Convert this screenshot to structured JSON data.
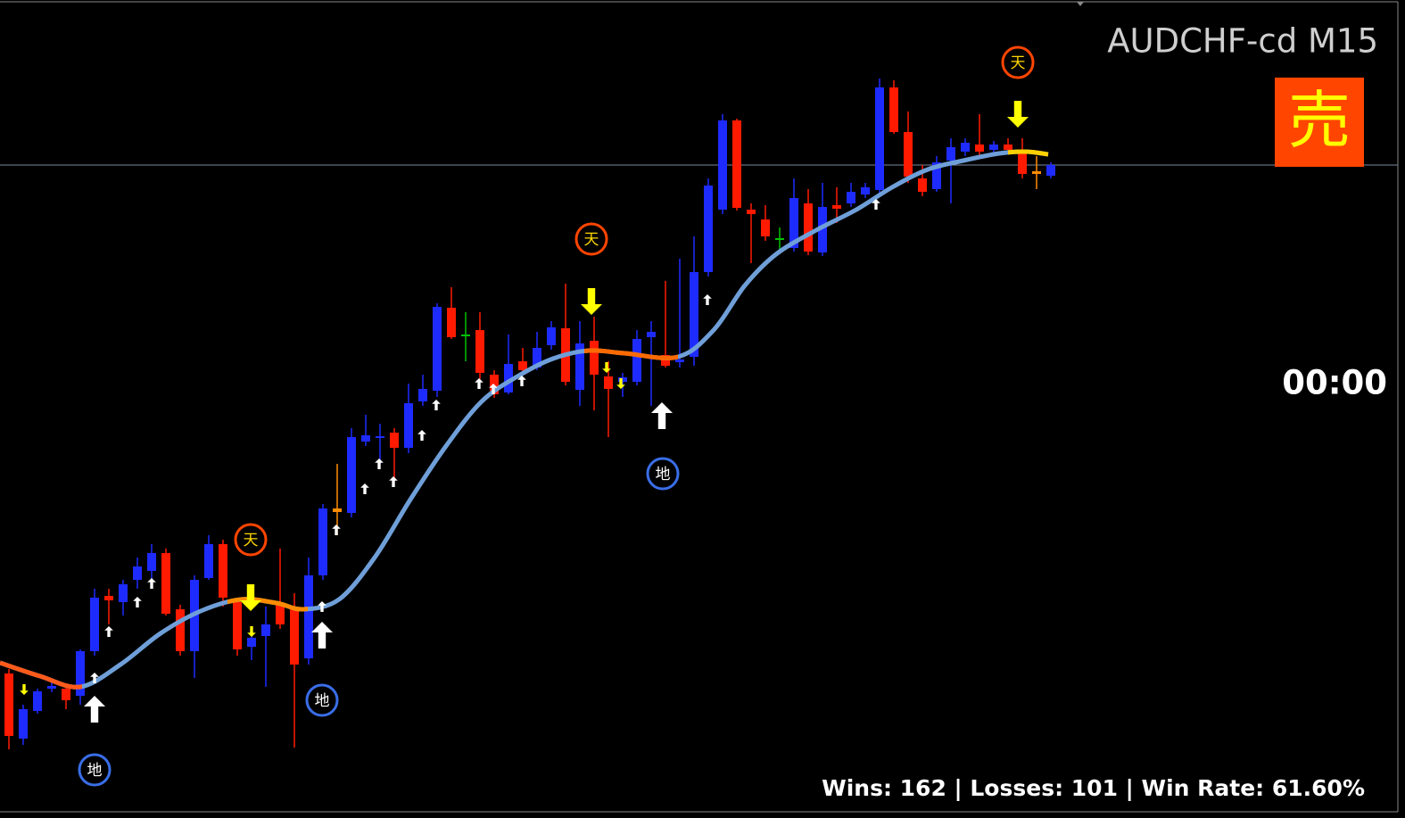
{
  "symbol": "AUDCHF-cd M15",
  "signal": "売",
  "timer": "00:00",
  "stats": "Wins: 162 | Losses: 101 | Win Rate: 61.60%",
  "markers": {
    "top": "天",
    "bottom": "地"
  }
}
